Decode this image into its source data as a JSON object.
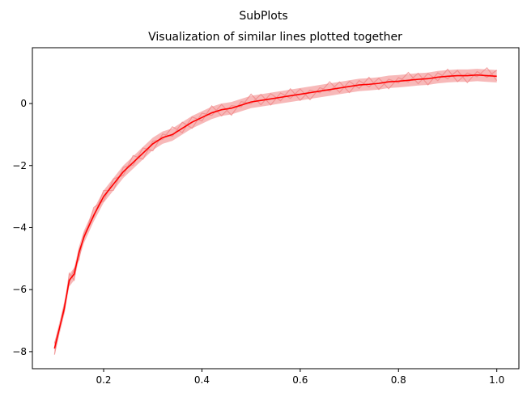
{
  "chart_data": {
    "type": "line",
    "suptitle": "SubPlots",
    "title": "Visualization of similar lines plotted together",
    "xlabel": "",
    "ylabel": "",
    "xlim": [
      0.055,
      1.045
    ],
    "ylim": [
      -8.55,
      1.8
    ],
    "xticks": [
      0.2,
      0.4,
      0.6,
      0.8,
      1.0
    ],
    "xtick_labels": [
      "0.2",
      "0.4",
      "0.6",
      "0.8",
      "1.0"
    ],
    "yticks": [
      -8,
      -6,
      -4,
      -2,
      0
    ],
    "ytick_labels": [
      "−8",
      "−6",
      "−4",
      "−2",
      "0"
    ],
    "grid": false,
    "legend": "none",
    "colors": {
      "mean_line": "#ff0000",
      "band_fill": "#f08080",
      "faint_lines": "#f4a6a6"
    },
    "x": [
      0.1,
      0.12,
      0.13,
      0.14,
      0.15,
      0.16,
      0.18,
      0.2,
      0.22,
      0.24,
      0.26,
      0.28,
      0.3,
      0.32,
      0.34,
      0.36,
      0.38,
      0.4,
      0.42,
      0.44,
      0.46,
      0.48,
      0.5,
      0.52,
      0.54,
      0.56,
      0.58,
      0.6,
      0.62,
      0.64,
      0.66,
      0.68,
      0.7,
      0.72,
      0.74,
      0.76,
      0.78,
      0.8,
      0.82,
      0.84,
      0.86,
      0.88,
      0.9,
      0.92,
      0.94,
      0.96,
      0.98,
      1.0
    ],
    "series": [
      {
        "values": [
          -7.9,
          -6.6,
          -5.7,
          -5.5,
          -4.8,
          -4.3,
          -3.6,
          -3.0,
          -2.6,
          -2.2,
          -1.9,
          -1.6,
          -1.3,
          -1.1,
          -1.0,
          -0.8,
          -0.6,
          -0.45,
          -0.3,
          -0.2,
          -0.15,
          -0.05,
          0.05,
          0.1,
          0.15,
          0.2,
          0.25,
          0.3,
          0.35,
          0.4,
          0.45,
          0.5,
          0.55,
          0.6,
          0.62,
          0.65,
          0.7,
          0.72,
          0.75,
          0.78,
          0.8,
          0.85,
          0.88,
          0.9,
          0.9,
          0.92,
          0.9,
          0.88
        ],
        "lower": [
          -8.1,
          -6.8,
          -5.9,
          -5.7,
          -5.0,
          -4.5,
          -3.8,
          -3.2,
          -2.8,
          -2.4,
          -2.1,
          -1.8,
          -1.5,
          -1.3,
          -1.2,
          -1.0,
          -0.8,
          -0.65,
          -0.5,
          -0.4,
          -0.35,
          -0.25,
          -0.15,
          -0.1,
          -0.05,
          0.0,
          0.05,
          0.1,
          0.15,
          0.2,
          0.25,
          0.3,
          0.35,
          0.4,
          0.42,
          0.45,
          0.5,
          0.52,
          0.55,
          0.58,
          0.6,
          0.65,
          0.68,
          0.7,
          0.7,
          0.72,
          0.7,
          0.68
        ],
        "upper": [
          -7.7,
          -6.4,
          -5.5,
          -5.3,
          -4.6,
          -4.1,
          -3.4,
          -2.8,
          -2.4,
          -2.0,
          -1.7,
          -1.4,
          -1.1,
          -0.9,
          -0.8,
          -0.6,
          -0.4,
          -0.25,
          -0.1,
          0.0,
          0.05,
          0.15,
          0.25,
          0.3,
          0.35,
          0.4,
          0.45,
          0.5,
          0.55,
          0.6,
          0.65,
          0.7,
          0.75,
          0.8,
          0.82,
          0.85,
          0.9,
          0.92,
          0.95,
          0.98,
          1.0,
          1.05,
          1.08,
          1.1,
          1.1,
          1.12,
          1.1,
          1.08
        ]
      }
    ]
  }
}
